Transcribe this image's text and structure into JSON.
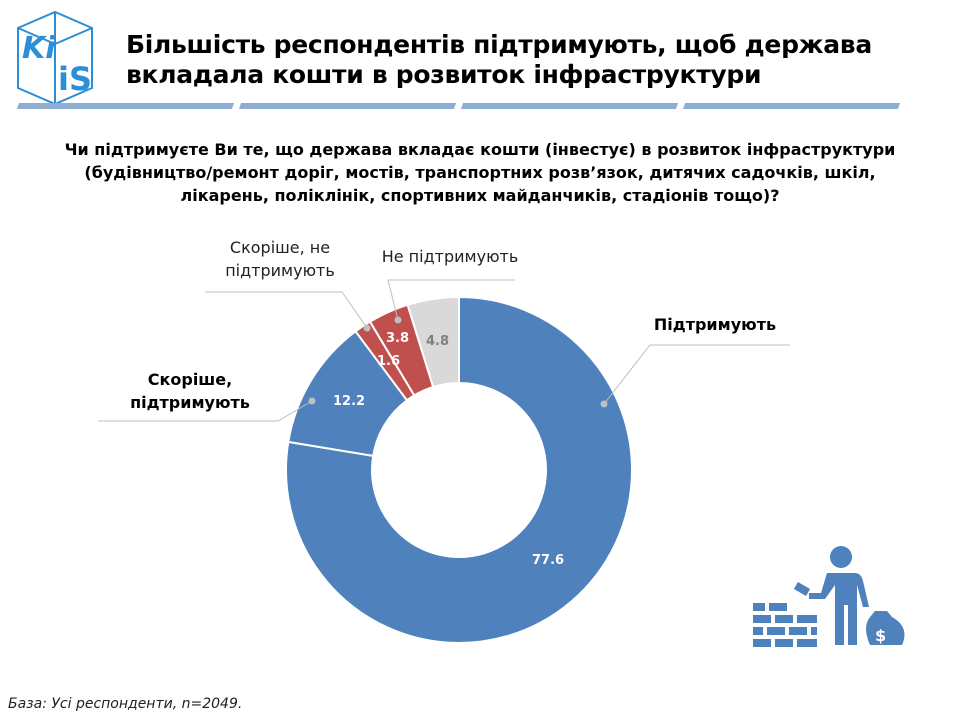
{
  "header": {
    "title_line1": "Більшість респондентів підтримують, щоб держава",
    "title_line2": "вкладала кошти в розвиток інфраструктури",
    "logo_text": "KIIS"
  },
  "question": "Чи підтримуєте Ви те, що держава вкладає кошти (інвестує) в розвиток інфраструктури (будівництво/ремонт доріг, мостів, транспортних розв’язок, дитячих садочків, шкіл, лікарень, поліклінік, спортивних майданчиків, стадіонів тощо)?",
  "chart_data": {
    "type": "pie",
    "donut": true,
    "start": "top, clockwise",
    "slices": [
      {
        "label": "Підтримують",
        "value": 77.6,
        "color": "#4f81bd"
      },
      {
        "label": "Скоріше, підтримують",
        "value": 12.2,
        "color": "#4f81bd"
      },
      {
        "label": "Скоріше, не підтримують",
        "value": 1.6,
        "color": "#c0504d"
      },
      {
        "label": "Не підтримують",
        "value": 3.8,
        "color": "#c0504d"
      },
      {
        "label": "",
        "value": 4.8,
        "color": "#d9d9d9"
      }
    ],
    "value_labels": [
      "77.6",
      "12.2",
      "1.6",
      "3.8",
      "4.8"
    ]
  },
  "labels": {
    "support": "Підтримують",
    "rather_support_1": "Скоріше,",
    "rather_support_2": "підтримують",
    "rather_not_1": "Скоріше, не",
    "rather_not_2": "підтримують",
    "not_support": "Не підтримують"
  },
  "icon": "builder-brick-wall-money-bag-icon",
  "footer": "База: Усі респонденти, n=2049."
}
